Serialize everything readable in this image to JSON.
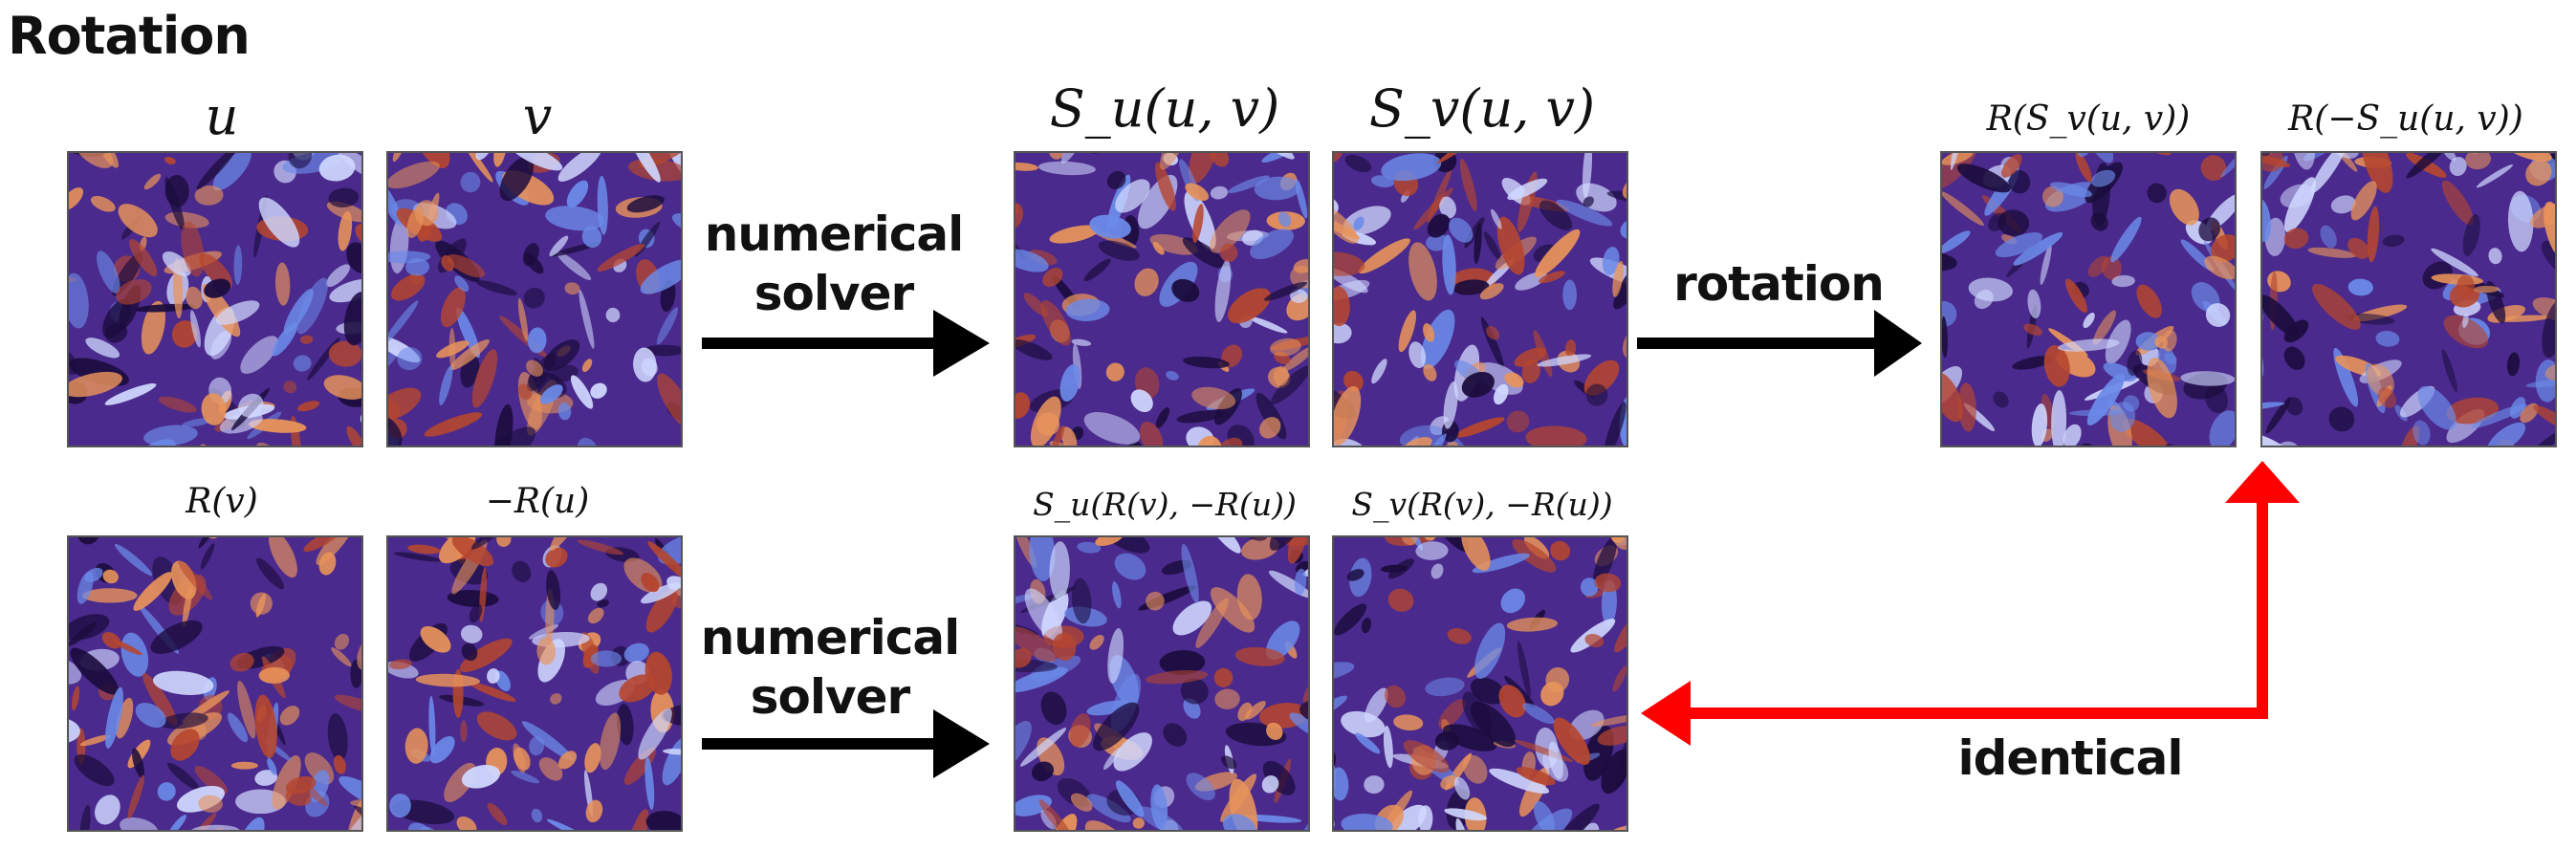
{
  "heading": "Rotation",
  "captions": {
    "u": "u",
    "v": "v",
    "su": "S_u(u, v)",
    "sv": "S_v(u, v)",
    "r_sv": "R(S_v(u, v))",
    "r_neg_su": "R(−S_u(u, v))",
    "r_v": "R(v)",
    "neg_r_u": "−R(u)",
    "su_rot": "S_u(R(v), −R(u))",
    "sv_rot": "S_v(R(v), −R(u))"
  },
  "steps": {
    "top_solver": [
      "numerical",
      "solver"
    ],
    "rotation": "rotation",
    "bottom_solver": [
      "numerical",
      "solver"
    ],
    "identical": "identical"
  },
  "colors": {
    "arrow": "#000000",
    "identical_arrow": "#ff0000",
    "field_dark": "#1b0c3d",
    "field_purple": "#4a2a8c",
    "field_blue": "#6b8ae8",
    "field_light": "#d0d8ff",
    "field_red": "#b5462f",
    "field_orange": "#e8935a"
  }
}
